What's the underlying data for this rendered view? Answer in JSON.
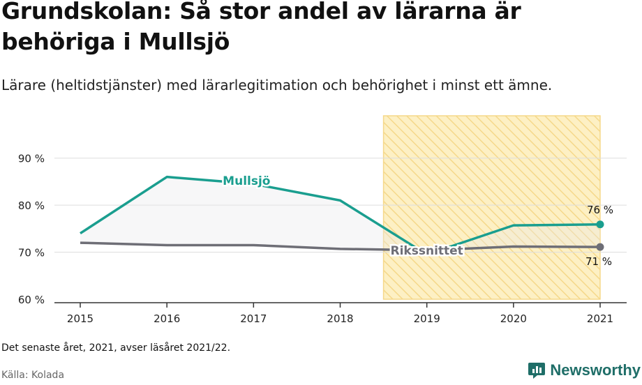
{
  "header": {
    "title": "Grundskolan: Så stor andel av lärarna är behöriga i Mullsjö",
    "subtitle": "Lärare (heltidstjänster) med lärarlegitimation och behörighet i minst ett ämne."
  },
  "footer": {
    "note": "Det senaste året, 2021, avser läsåret 2021/22.",
    "source": "Källa: Kolada",
    "brand": "Newsworthy"
  },
  "colors": {
    "mullsjo": "#1a9e8f",
    "riket": "#6e6e76",
    "highlight_fill": "#fdf0c4",
    "highlight_stripe": "#f5d88a"
  },
  "chart_data": {
    "type": "line",
    "categories": [
      "2015",
      "2016",
      "2017",
      "2018",
      "2019",
      "2020",
      "2021"
    ],
    "series": [
      {
        "name": "Mullsjö",
        "values": [
          74.0,
          86.0,
          84.5,
          81.0,
          69.5,
          75.7,
          75.9
        ]
      },
      {
        "name": "Rikssnittet",
        "values": [
          72.0,
          71.5,
          71.5,
          70.7,
          70.4,
          71.2,
          71.1
        ]
      }
    ],
    "yticks": [
      "60 %",
      "70 %",
      "80 %",
      "90 %"
    ],
    "ytick_values": [
      60,
      70,
      80,
      90
    ],
    "ylim": [
      60,
      99
    ],
    "highlight_range": [
      "2019",
      "2021"
    ],
    "end_labels": [
      "76 %",
      "71 %"
    ],
    "grid": true,
    "legend": "inline labels"
  }
}
